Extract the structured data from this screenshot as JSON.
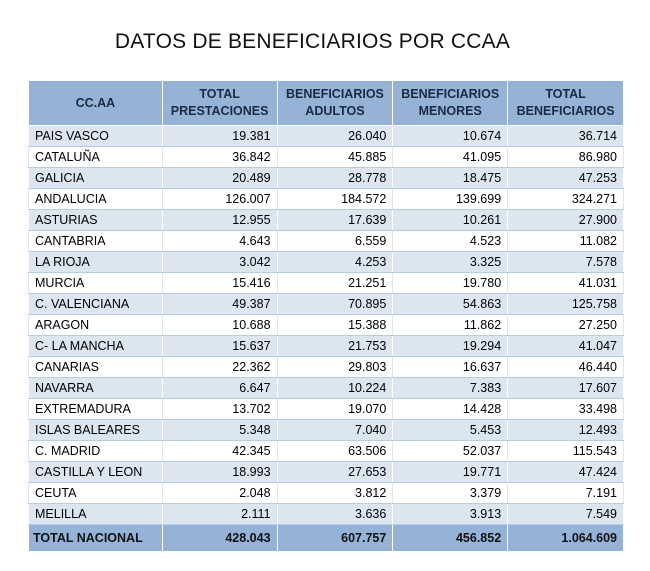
{
  "title": "DATOS DE BENEFICIARIOS POR CCAA",
  "headers": [
    [
      "CC.AA"
    ],
    [
      "TOTAL",
      "PRESTACIONES"
    ],
    [
      "BENEFICIARIOS",
      "ADULTOS"
    ],
    [
      "BENEFICIARIOS",
      "MENORES"
    ],
    [
      "TOTAL",
      "BENEFICIARIOS"
    ]
  ],
  "rows": [
    [
      "PAIS VASCO",
      "19.381",
      "26.040",
      "10.674",
      "36.714"
    ],
    [
      "CATALUÑA",
      "36.842",
      "45.885",
      "41.095",
      "86.980"
    ],
    [
      "GALICIA",
      "20.489",
      "28.778",
      "18.475",
      "47.253"
    ],
    [
      "ANDALUCIA",
      "126.007",
      "184.572",
      "139.699",
      "324.271"
    ],
    [
      "ASTURIAS",
      "12.955",
      "17.639",
      "10.261",
      "27.900"
    ],
    [
      "CANTABRIA",
      "4.643",
      "6.559",
      "4.523",
      "11.082"
    ],
    [
      "LA RIOJA",
      "3.042",
      "4.253",
      "3.325",
      "7.578"
    ],
    [
      " MURCIA",
      "15.416",
      "21.251",
      "19.780",
      "41.031"
    ],
    [
      "C. VALENCIANA",
      "49.387",
      "70.895",
      "54.863",
      "125.758"
    ],
    [
      "ARAGON",
      "10.688",
      "15.388",
      "11.862",
      "27.250"
    ],
    [
      "C- LA MANCHA",
      "15.637",
      "21.753",
      "19.294",
      "41.047"
    ],
    [
      "CANARIAS",
      "22.362",
      "29.803",
      "16.637",
      "46.440"
    ],
    [
      "NAVARRA",
      "6.647",
      "10.224",
      "7.383",
      "17.607"
    ],
    [
      "EXTREMADURA",
      "13.702",
      "19.070",
      "14.428",
      "33.498"
    ],
    [
      "ISLAS BALEARES",
      "5.348",
      "7.040",
      "5.453",
      "12.493"
    ],
    [
      "C. MADRID",
      "42.345",
      "63.506",
      "52.037",
      "115.543"
    ],
    [
      "CASTILLA Y LEON",
      "18.993",
      "27.653",
      "19.771",
      "47.424"
    ],
    [
      "CEUTA",
      "2.048",
      "3.812",
      "3.379",
      "7.191"
    ],
    [
      "MELILLA",
      "2.111",
      "3.636",
      "3.913",
      "7.549"
    ]
  ],
  "total": [
    "TOTAL NACIONAL",
    "428.043",
    "607.757",
    "456.852",
    "1.064.609"
  ],
  "colors": {
    "header_bg": "#95b3d7",
    "band_bg": "#dce6f1",
    "header_text": "#1a2a44"
  }
}
